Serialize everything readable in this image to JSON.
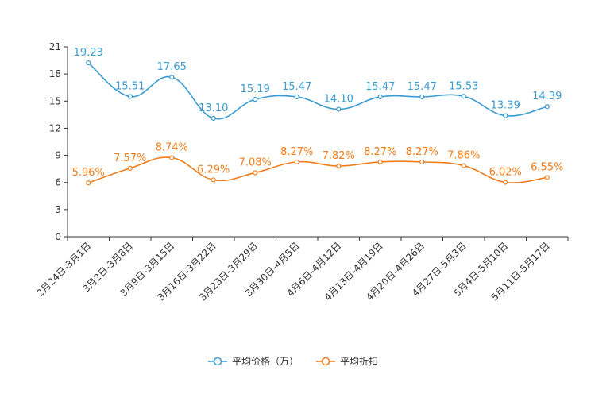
{
  "chart_data": {
    "type": "line",
    "title": "",
    "xlabel": "",
    "ylabel": "",
    "ylim": [
      0,
      21
    ],
    "yticks": [
      0,
      3,
      6,
      9,
      12,
      15,
      18,
      21
    ],
    "ytick_labels": [
      "0",
      "3",
      "6",
      "9",
      "12",
      "15",
      "18",
      "21"
    ],
    "grid": false,
    "legend_position": "bottom-center",
    "categories": [
      "2月24日-3月1日",
      "3月2日-3月8日",
      "3月9日-3月15日",
      "3月16日-3月22日",
      "3月23日-3月29日",
      "3月30日-4月5日",
      "4月6日-4月12日",
      "4月13日-4月19日",
      "4月20日-4月26日",
      "4月27日-5月3日",
      "5月4日-5月10日",
      "5月11日-5月17日"
    ],
    "series": [
      {
        "name": "平均价格（万）",
        "color": "#3a9bd0",
        "values": [
          19.23,
          15.51,
          17.65,
          13.1,
          15.19,
          15.47,
          14.1,
          15.47,
          15.47,
          15.53,
          13.39,
          14.39
        ],
        "labels": [
          "19.23",
          "15.51",
          "17.65",
          "13.10",
          "15.19",
          "15.47",
          "14.10",
          "15.47",
          "15.47",
          "15.53",
          "13.39",
          "14.39"
        ]
      },
      {
        "name": "平均折扣",
        "color": "#f07d1a",
        "values": [
          5.96,
          7.57,
          8.74,
          6.29,
          7.08,
          8.27,
          7.82,
          8.27,
          8.27,
          7.86,
          6.02,
          6.55
        ],
        "labels": [
          "5.96%",
          "7.57%",
          "8.74%",
          "6.29%",
          "7.08%",
          "8.27%",
          "7.82%",
          "8.27%",
          "8.27%",
          "7.86%",
          "6.02%",
          "6.55%"
        ]
      }
    ]
  }
}
